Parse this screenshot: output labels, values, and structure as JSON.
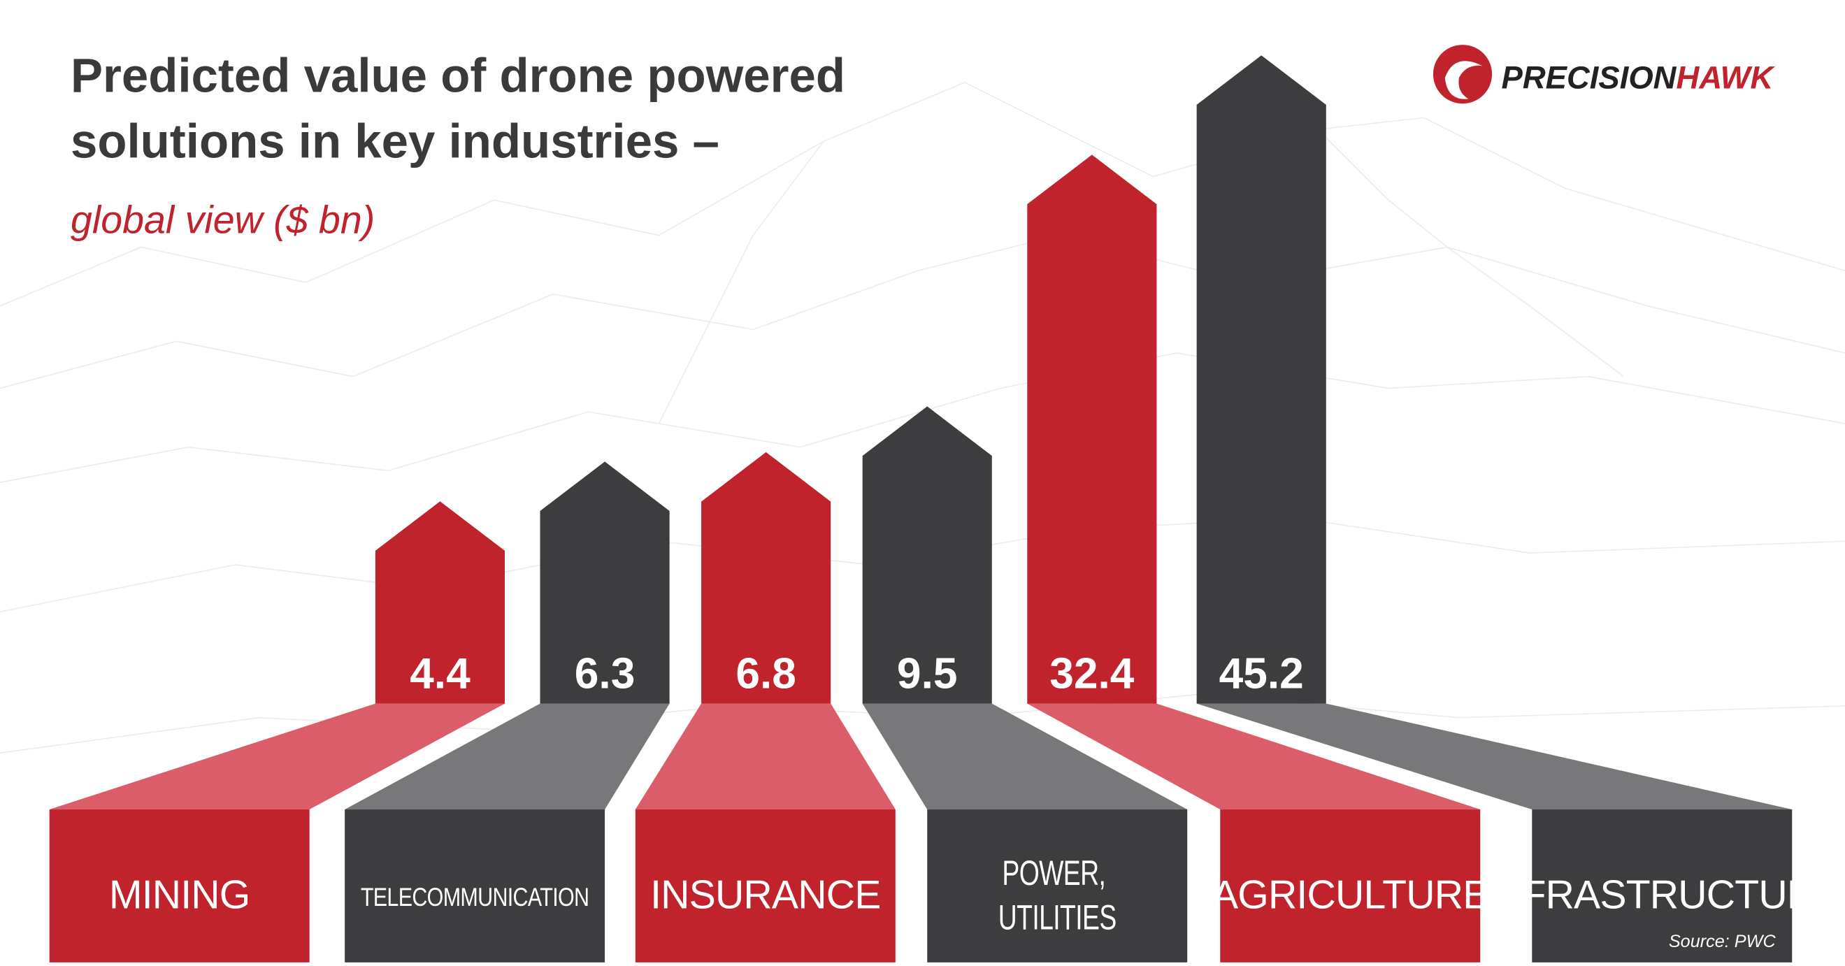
{
  "chart_data": {
    "type": "arrow-bar",
    "title": [
      "Predicted value of drone powered",
      "solutions in key industries –"
    ],
    "subtitle": "global view ($ bn)",
    "logo": [
      "PRECISION",
      "HAWK"
    ],
    "source": "Source: PWC",
    "categories": [
      "MINING",
      "TELECOMMUNICATION",
      "INSURANCE",
      "POWER, UTILITIES",
      "AGRICULTURE",
      "INFRASTRUCTURE"
    ],
    "values": [
      4.4,
      6.3,
      6.8,
      9.5,
      32.4,
      45.2
    ],
    "colors": [
      "#c0232c",
      "#3d3c3e",
      "#c0232c",
      "#3d3c3e",
      "#c0232c",
      "#3d3c3e"
    ],
    "connector_colors": [
      "#dc5d6a",
      "#78787b",
      "#dc5d6a",
      "#78787b",
      "#dc5d6a",
      "#78787b"
    ],
    "scale": "sqrt"
  }
}
